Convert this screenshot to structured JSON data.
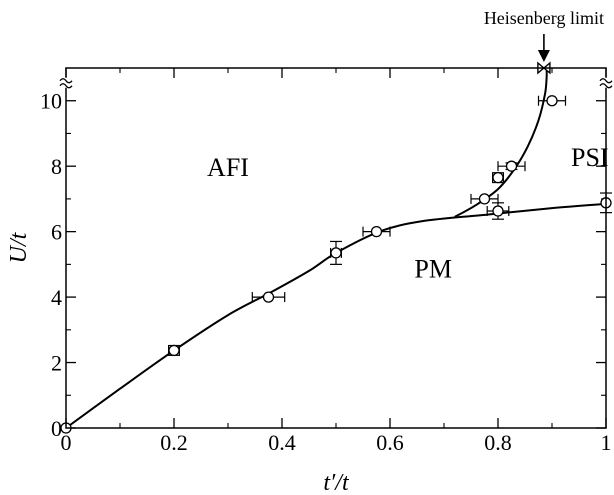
{
  "chart_data": {
    "type": "line",
    "title": "",
    "xlabel": "t′/t",
    "ylabel": "U/t",
    "xlim": [
      0,
      1
    ],
    "ylim": [
      0,
      11
    ],
    "x_ticks": [
      "0",
      "0.2",
      "0.4",
      "0.6",
      "0.8",
      "1"
    ],
    "y_ticks": [
      "0",
      "2",
      "4",
      "6",
      "8",
      "10"
    ],
    "grid": false,
    "legend": "none",
    "y_axis_break": "at top, near 11",
    "regions": [
      {
        "label": "AFI",
        "x": 0.3,
        "y": 7.7
      },
      {
        "label": "PM",
        "x": 0.68,
        "y": 4.6
      },
      {
        "label": "PSI",
        "x": 0.97,
        "y": 8.0
      }
    ],
    "annotation": {
      "text": "Heisenberg limit",
      "x": 0.885,
      "y": 11
    },
    "series": [
      {
        "role": "AFI-PM boundary",
        "points": [
          [
            0,
            0
          ],
          [
            0.1,
            1.2
          ],
          [
            0.2,
            2.37
          ],
          [
            0.3,
            3.45
          ],
          [
            0.38,
            4.15
          ],
          [
            0.45,
            4.8
          ],
          [
            0.5,
            5.35
          ],
          [
            0.58,
            6.0
          ],
          [
            0.66,
            6.32
          ],
          [
            0.78,
            6.52
          ],
          [
            0.9,
            6.72
          ],
          [
            1.0,
            6.85
          ]
        ]
      },
      {
        "role": "AFI-PSI boundary",
        "points": [
          [
            0.72,
            6.45
          ],
          [
            0.76,
            6.82
          ],
          [
            0.8,
            7.3
          ],
          [
            0.83,
            7.9
          ],
          [
            0.855,
            8.6
          ],
          [
            0.875,
            9.4
          ],
          [
            0.887,
            10.2
          ],
          [
            0.89,
            10.7
          ],
          [
            0.89,
            11.0
          ]
        ]
      }
    ],
    "points": [
      {
        "x": 0,
        "y": 0,
        "xerr": 0,
        "yerr": 0
      },
      {
        "x": 0.2,
        "y": 2.37,
        "xerr": 0.01,
        "yerr": 0.15
      },
      {
        "x": 0.375,
        "y": 4.0,
        "xerr": 0.03,
        "yerr": 0
      },
      {
        "x": 0.5,
        "y": 5.35,
        "xerr": 0.01,
        "yerr": 0.35
      },
      {
        "x": 0.575,
        "y": 6.0,
        "xerr": 0.025,
        "yerr": 0
      },
      {
        "x": 0.775,
        "y": 7.0,
        "xerr": 0.025,
        "yerr": 0
      },
      {
        "x": 0.8,
        "y": 7.65,
        "xerr": 0.01,
        "yerr": 0.15
      },
      {
        "x": 0.8,
        "y": 6.63,
        "xerr": 0.02,
        "yerr": 0.25
      },
      {
        "x": 0.825,
        "y": 8.0,
        "xerr": 0.025,
        "yerr": 0.1
      },
      {
        "x": 0.9,
        "y": 10.0,
        "xerr": 0.025,
        "yerr": 0
      },
      {
        "x": 1.0,
        "y": 6.88,
        "xerr": 0,
        "yerr": 0.3
      }
    ],
    "special_points": [
      {
        "label": "Heisenberg limit marker",
        "x": 0.885,
        "y": 11.0,
        "shape": "bowtie"
      }
    ]
  }
}
